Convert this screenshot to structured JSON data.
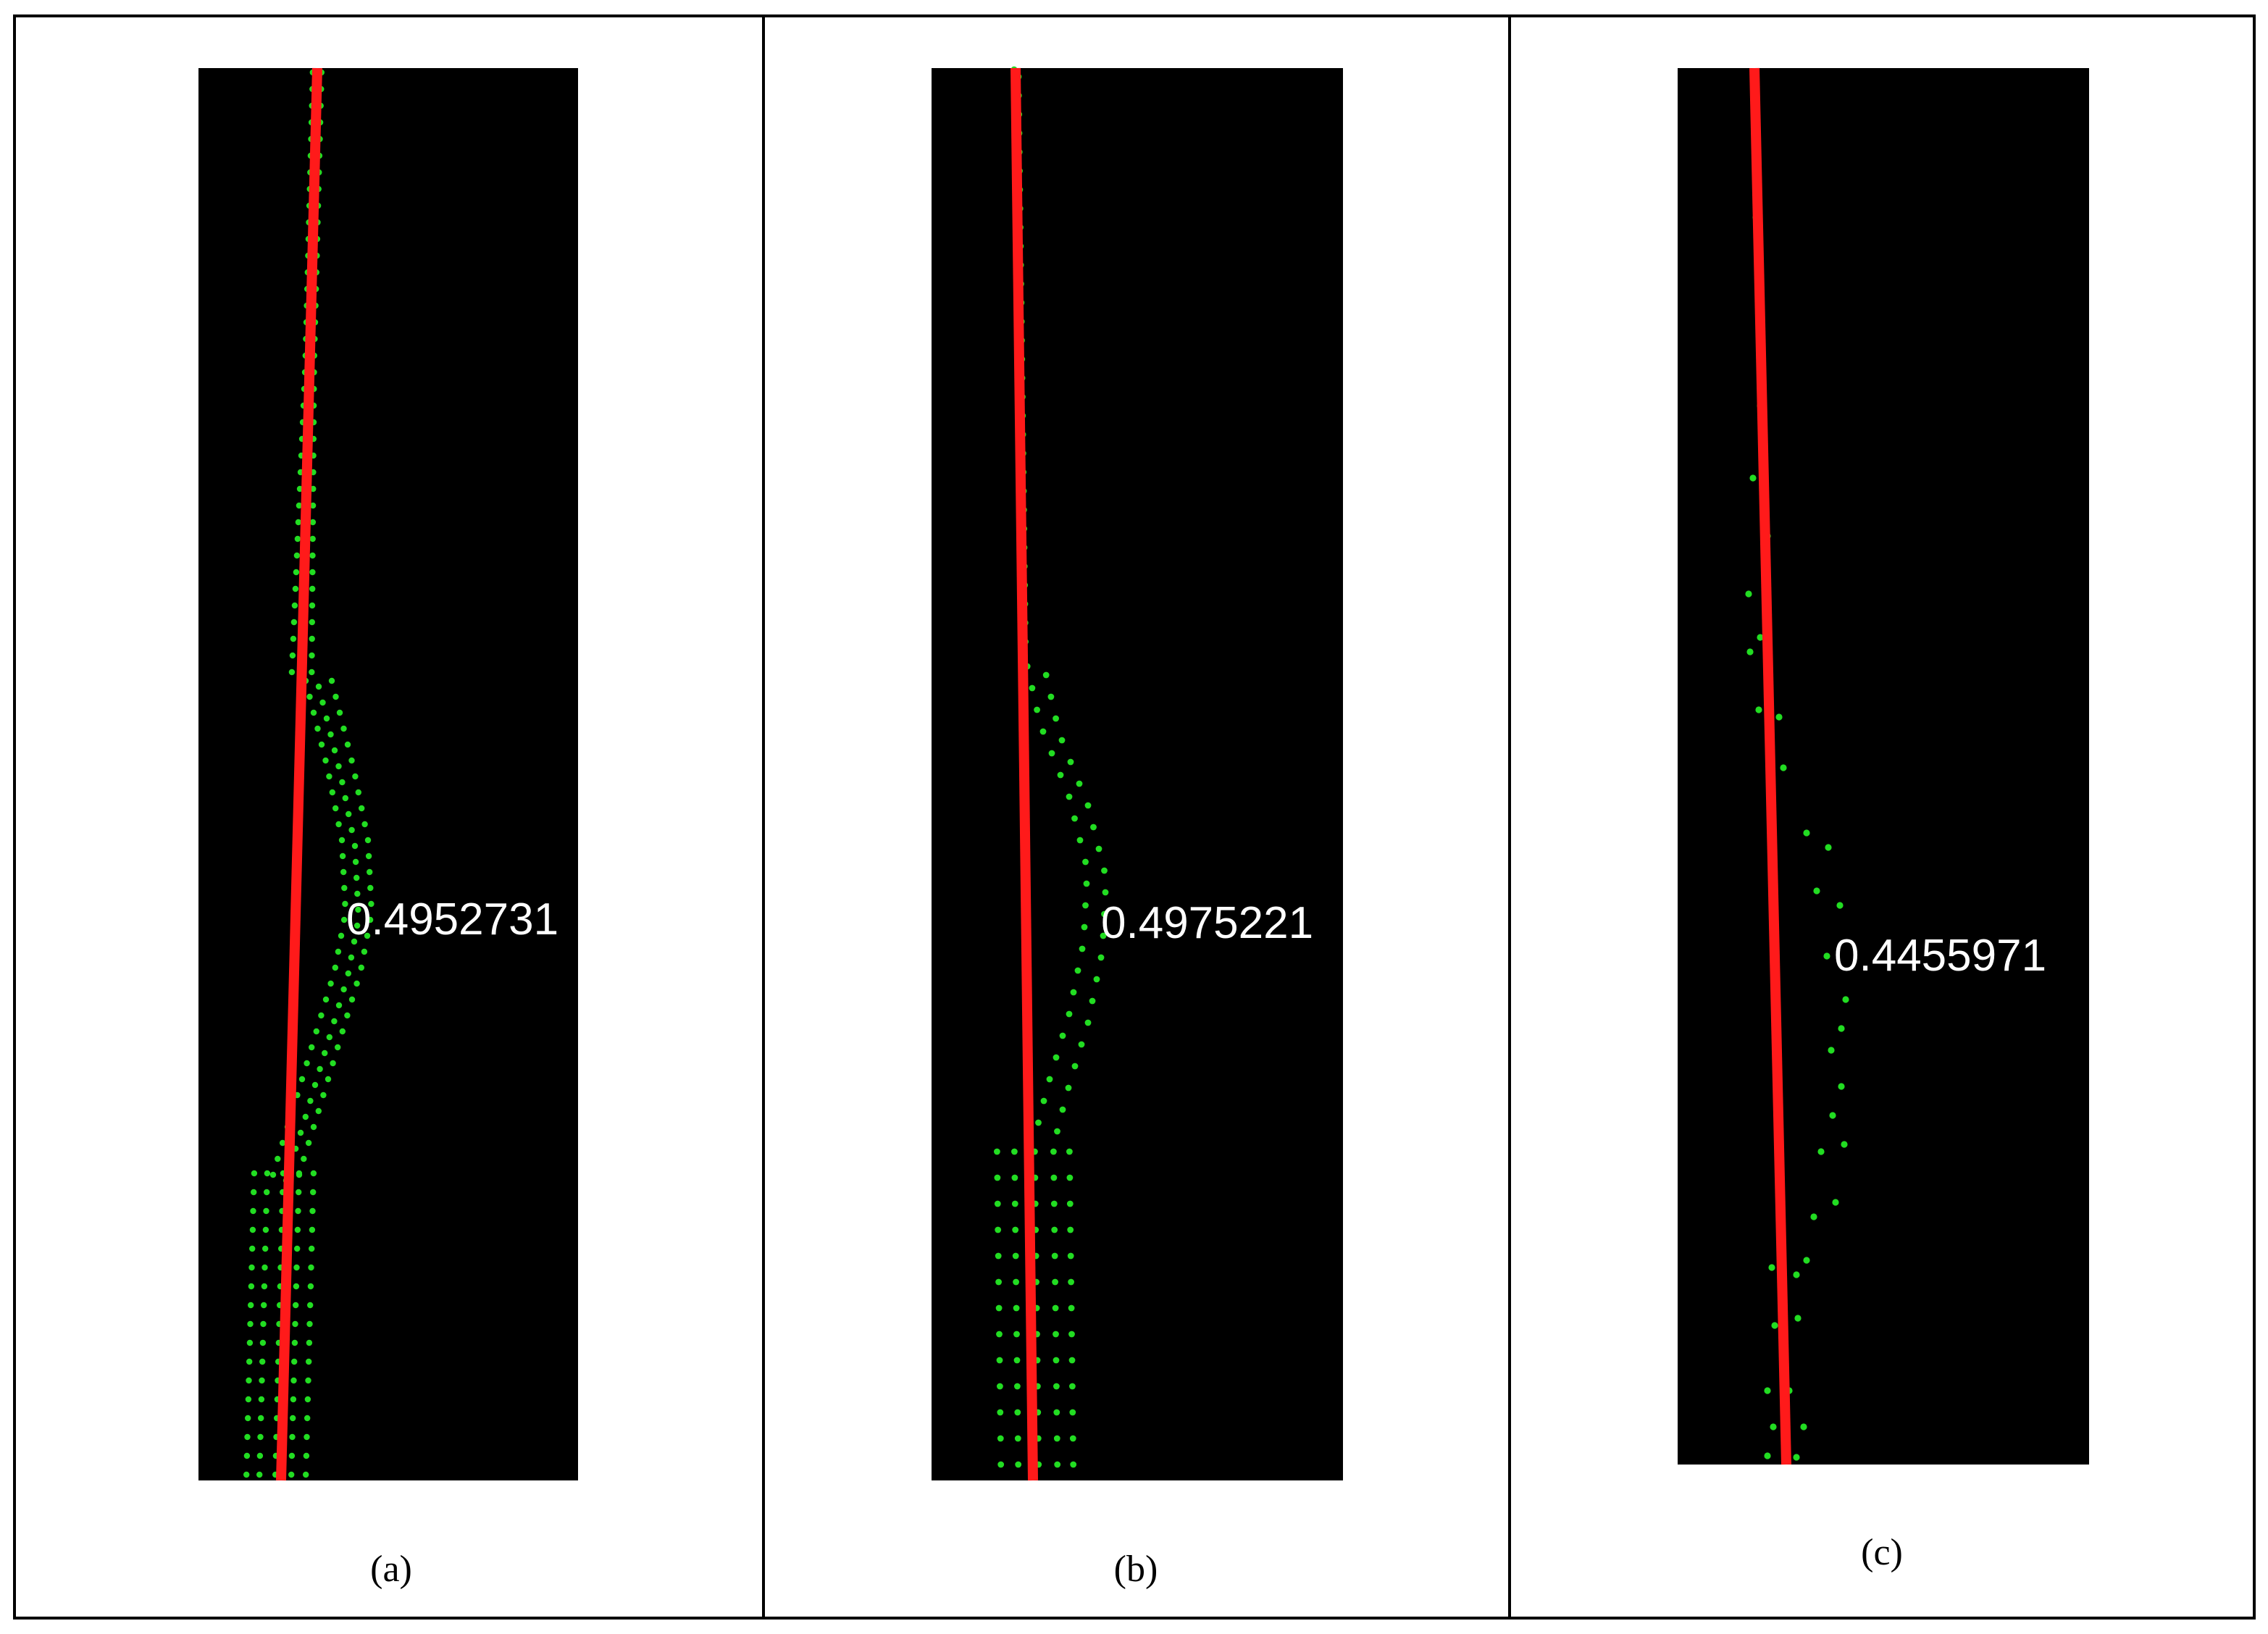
{
  "panels": [
    {
      "id": "a",
      "caption": "(a)",
      "value_label": "0.4952731",
      "colors": {
        "background": "#000000",
        "fit_line": "#ff1a1a",
        "points": "#22dd22"
      }
    },
    {
      "id": "b",
      "caption": "(b)",
      "value_label": "0.4975221",
      "colors": {
        "background": "#000000",
        "fit_line": "#ff1a1a",
        "points": "#22dd22"
      }
    },
    {
      "id": "c",
      "caption": "(c)",
      "value_label": "0.4455971",
      "colors": {
        "background": "#000000",
        "fit_line": "#ff1a1a",
        "points": "#22dd22"
      }
    }
  ]
}
